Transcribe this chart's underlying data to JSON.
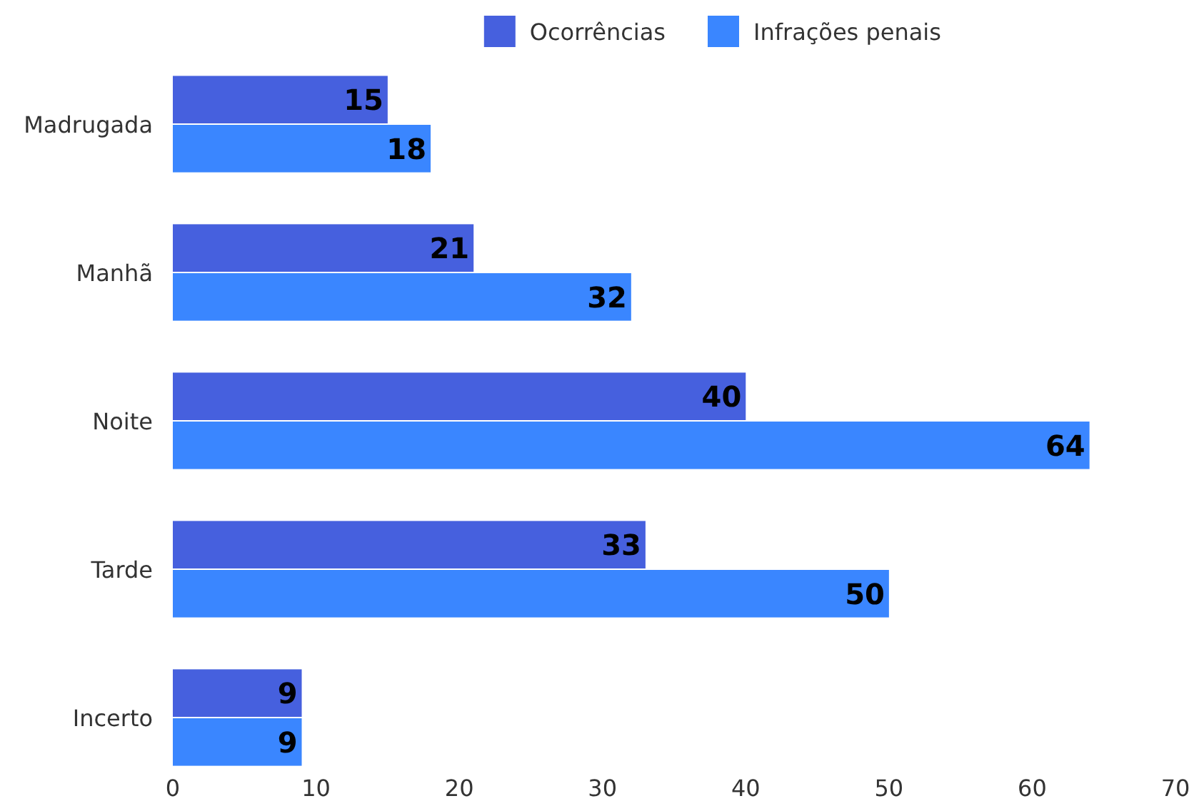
{
  "chart_data": {
    "type": "bar",
    "orientation": "horizontal",
    "categories": [
      "Madrugada",
      "Manhã",
      "Noite",
      "Tarde",
      "Incerto"
    ],
    "series": [
      {
        "name": "Ocorrências",
        "color": "#4660de",
        "values": [
          15,
          21,
          40,
          33,
          9
        ]
      },
      {
        "name": "Infrações penais",
        "color": "#3a86ff",
        "values": [
          18,
          32,
          64,
          50,
          9
        ]
      }
    ],
    "xlim": [
      0,
      70
    ],
    "xticks": [
      0,
      10,
      20,
      30,
      40,
      50,
      60,
      70
    ],
    "grid": false,
    "legend": "top",
    "data_labels": true
  }
}
